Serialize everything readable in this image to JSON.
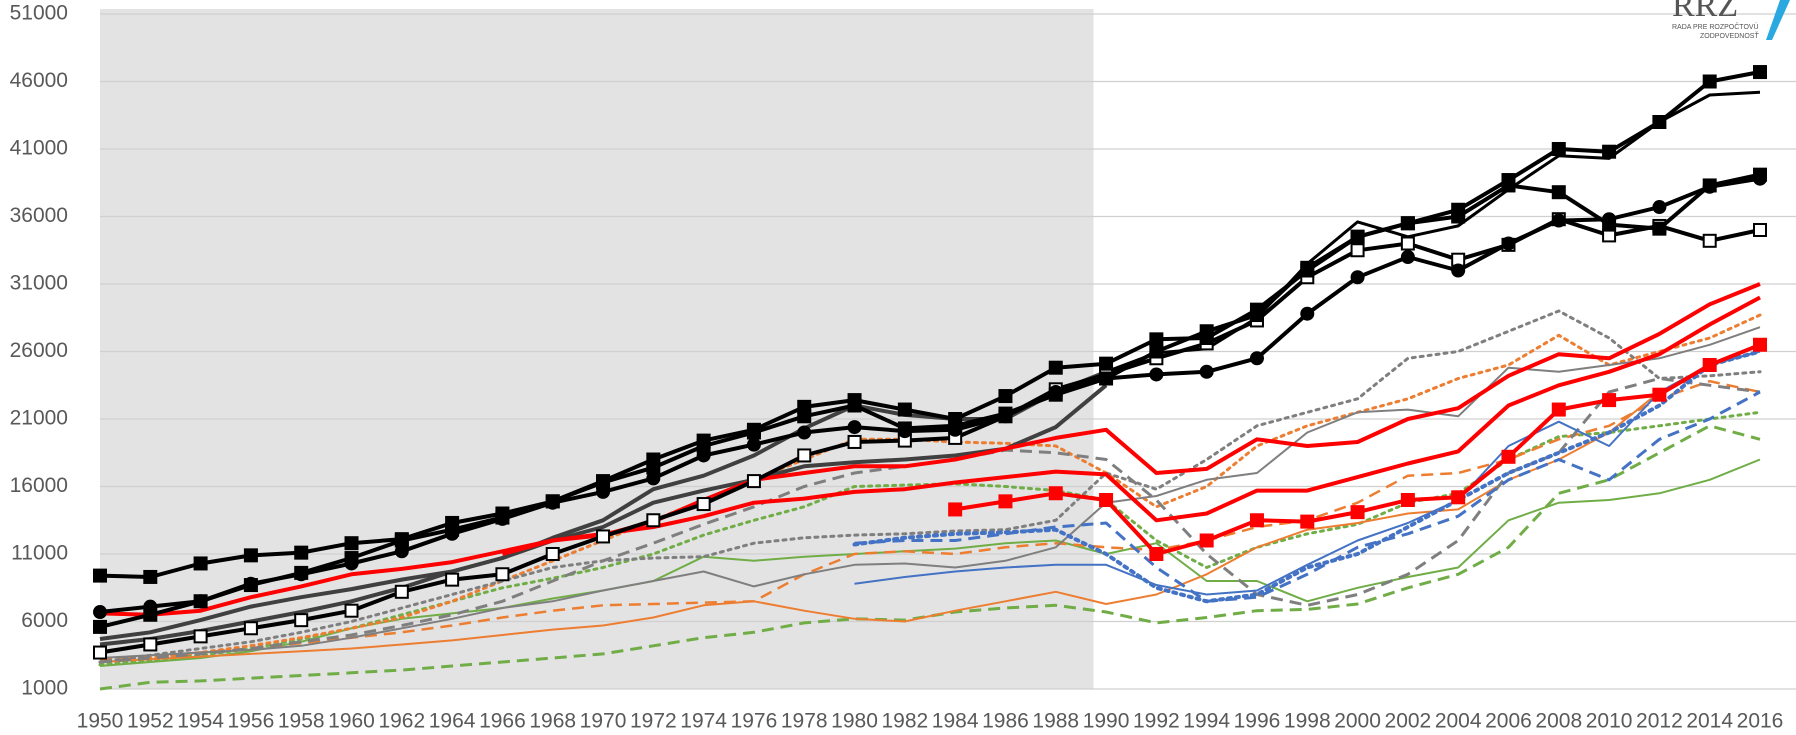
{
  "chart_data": {
    "type": "line",
    "logo": {
      "title": "RRZ",
      "lines": [
        "RADA PRE ROZPOČTOVÚ",
        "ZODPOVEDNOSŤ"
      ]
    },
    "x": [
      1950,
      1952,
      1954,
      1956,
      1958,
      1960,
      1962,
      1964,
      1966,
      1968,
      1970,
      1972,
      1974,
      1976,
      1978,
      1980,
      1982,
      1984,
      1986,
      1988,
      1990,
      1992,
      1994,
      1996,
      1998,
      2000,
      2002,
      2004,
      2006,
      2008,
      2010,
      2012,
      2014,
      2016
    ],
    "xlim": [
      1950,
      2016
    ],
    "xticks": [
      1950,
      1952,
      1954,
      1956,
      1958,
      1960,
      1962,
      1964,
      1966,
      1968,
      1970,
      1972,
      1974,
      1976,
      1978,
      1980,
      1982,
      1984,
      1986,
      1988,
      1990,
      1992,
      1994,
      1996,
      1998,
      2000,
      2002,
      2004,
      2006,
      2008,
      2010,
      2012,
      2014,
      2016
    ],
    "ylim": [
      1000,
      51000
    ],
    "yticks": [
      1000,
      6000,
      11000,
      16000,
      21000,
      26000,
      31000,
      36000,
      41000,
      46000,
      51000
    ],
    "grid": true,
    "shaded_span": [
      1950,
      1989.5
    ],
    "shade_color": "#e3e3e3",
    "series": [
      {
        "color": "#70ad47",
        "dash": "dashed",
        "width": 3,
        "values": [
          1000,
          1500,
          1600,
          1800,
          2000,
          2200,
          2400,
          2700,
          3000,
          3300,
          3600,
          4200,
          4800,
          5200,
          5900,
          6200,
          6100,
          6700,
          7000,
          7200,
          6700,
          5900,
          6300,
          6800,
          6900,
          7300,
          8500,
          9500,
          11500,
          15500,
          16500,
          18500,
          20500,
          19500
        ]
      },
      {
        "color": "#70ad47",
        "dash": "solid",
        "width": 2,
        "values": [
          2700,
          3000,
          3300,
          3800,
          4500,
          5500,
          6200,
          6600,
          7000,
          7700,
          8300,
          9000,
          10800,
          10500,
          10800,
          11000,
          11200,
          11400,
          11800,
          12000,
          11000,
          11800,
          9000,
          9000,
          7500,
          8500,
          9300,
          10000,
          13500,
          14800,
          15000,
          15500,
          16500,
          18000
        ]
      },
      {
        "color": "#70ad47",
        "dash": "dotted",
        "width": 3,
        "values": [
          2800,
          3100,
          3500,
          4000,
          4700,
          5500,
          6500,
          7500,
          8500,
          9200,
          10000,
          11000,
          12400,
          13500,
          14500,
          16000,
          16100,
          16200,
          16000,
          15700,
          15000,
          12000,
          10000,
          11500,
          12500,
          13200,
          14800,
          15500,
          18000,
          19700,
          20000,
          20500,
          21000,
          21500
        ]
      },
      {
        "color": "#ed7d31",
        "dash": "solid",
        "width": 2,
        "values": [
          3000,
          3200,
          3400,
          3600,
          3800,
          4000,
          4300,
          4600,
          5000,
          5400,
          5700,
          6300,
          7200,
          7500,
          6800,
          6200,
          6000,
          6800,
          7500,
          8200,
          7300,
          8000,
          9500,
          11500,
          12800,
          13300,
          14000,
          14300,
          16500,
          18000,
          20000,
          23000,
          25000,
          26000
        ]
      },
      {
        "color": "#ed7d31",
        "dash": "dashed",
        "width": 2.5,
        "values": [
          3200,
          3400,
          3700,
          4000,
          4400,
          4800,
          5200,
          5700,
          6300,
          6800,
          7200,
          7300,
          7400,
          7500,
          9500,
          11000,
          11200,
          11000,
          11500,
          11800,
          11500,
          11300,
          12000,
          13000,
          13500,
          14800,
          16800,
          17000,
          18000,
          19500,
          20500,
          22500,
          23800,
          23000
        ]
      },
      {
        "color": "#ed7d31",
        "dash": "dotted",
        "width": 3,
        "values": [
          3000,
          3300,
          3700,
          4200,
          4800,
          5500,
          6300,
          7500,
          9000,
          10500,
          12000,
          13500,
          15000,
          16500,
          18000,
          19500,
          19500,
          19300,
          19200,
          19000,
          17000,
          14500,
          16000,
          19000,
          20500,
          21500,
          22500,
          24000,
          25000,
          27200,
          25000,
          26000,
          27000,
          28700
        ]
      },
      {
        "color": "#7f7f7f",
        "dash": "solid",
        "width": 2,
        "values": [
          3300,
          3500,
          3700,
          3900,
          4200,
          4800,
          5500,
          6200,
          7000,
          7500,
          8300,
          9000,
          9700,
          8600,
          9500,
          10200,
          10300,
          10000,
          10500,
          11500,
          14800,
          15300,
          16500,
          17000,
          20000,
          21500,
          21700,
          21200,
          24800,
          24500,
          25000,
          25500,
          26500,
          27800
        ]
      },
      {
        "color": "#7f7f7f",
        "dash": "dashed",
        "width": 3,
        "values": [
          3000,
          3300,
          3600,
          4000,
          4500,
          5000,
          5700,
          6500,
          7500,
          9000,
          10500,
          11800,
          13200,
          14500,
          16000,
          17000,
          17500,
          18000,
          18700,
          18500,
          18000,
          15000,
          11000,
          8000,
          7200,
          8000,
          9500,
          12000,
          17000,
          18500,
          23000,
          24000,
          23500,
          23000
        ]
      },
      {
        "color": "#7f7f7f",
        "dash": "dotted",
        "width": 3,
        "values": [
          3000,
          3500,
          4000,
          4500,
          5200,
          6000,
          7000,
          8000,
          9000,
          10000,
          10500,
          10700,
          10800,
          11800,
          12200,
          12400,
          12500,
          12700,
          12800,
          13500,
          17000,
          15800,
          18000,
          20500,
          21500,
          22500,
          25500,
          26000,
          27500,
          29000,
          27000,
          24000,
          24200,
          24500
        ]
      },
      {
        "color": "#4472c4",
        "dash": "solid",
        "width": 2,
        "values": [
          null,
          null,
          null,
          null,
          null,
          null,
          null,
          null,
          null,
          null,
          null,
          null,
          null,
          null,
          null,
          8800,
          9300,
          9700,
          10000,
          10200,
          10200,
          8700,
          8000,
          8300,
          10200,
          12000,
          13300,
          15000,
          19000,
          20800,
          19000,
          23000,
          25000,
          26000
        ]
      },
      {
        "color": "#4472c4",
        "dash": "dashed",
        "width": 3,
        "values": [
          null,
          null,
          null,
          null,
          null,
          null,
          null,
          null,
          null,
          null,
          null,
          null,
          null,
          null,
          null,
          11800,
          12000,
          12000,
          12500,
          13000,
          13300,
          10000,
          7500,
          7800,
          9500,
          11500,
          12500,
          13800,
          16500,
          18000,
          16500,
          19500,
          21000,
          23000
        ]
      },
      {
        "color": "#4472c4",
        "dash": "dotted",
        "width": 4,
        "values": [
          null,
          null,
          null,
          null,
          null,
          null,
          null,
          null,
          null,
          null,
          null,
          null,
          null,
          null,
          null,
          11700,
          12200,
          12500,
          12600,
          12800,
          11000,
          8500,
          7500,
          8000,
          10000,
          11000,
          13000,
          15000,
          17000,
          18500,
          20000,
          22000,
          25000,
          26000
        ]
      },
      {
        "color": "#404040",
        "dash": "solid",
        "width": 4,
        "values": [
          4700,
          5200,
          6100,
          7100,
          7800,
          8400,
          9100,
          9700,
          10700,
          12000,
          13000,
          14800,
          15700,
          16500,
          17500,
          17800,
          18000,
          18300,
          18800,
          20400,
          23500,
          null,
          null,
          null,
          null,
          null,
          null,
          null,
          null,
          null,
          null,
          null,
          null,
          null
        ]
      },
      {
        "color": "#404040",
        "dash": "solid",
        "width": 4,
        "values": [
          4300,
          4700,
          5300,
          6000,
          6700,
          7500,
          8500,
          9700,
          10700,
          12200,
          13500,
          15800,
          16800,
          18300,
          20300,
          22000,
          21300,
          21000,
          21000,
          23000,
          24500,
          null,
          null,
          null,
          null,
          null,
          null,
          null,
          null,
          null,
          null,
          null,
          null,
          null
        ]
      },
      {
        "color": "#ff0000",
        "dash": "solid",
        "width": 4,
        "values": [
          6600,
          6500,
          6800,
          7800,
          8600,
          9500,
          9900,
          10400,
          11200,
          12000,
          12400,
          13400,
          15000,
          16500,
          17000,
          17500,
          17500,
          18000,
          18800,
          19600,
          20200,
          17000,
          17300,
          19500,
          19000,
          19300,
          21000,
          21800,
          24200,
          25800,
          25500,
          27300,
          29500,
          31000
        ]
      },
      {
        "color": "#ff0000",
        "dash": "solid",
        "width": 4,
        "values": [
          null,
          null,
          null,
          null,
          null,
          null,
          null,
          null,
          11000,
          12000,
          12500,
          13000,
          13800,
          14800,
          15100,
          15600,
          15800,
          16300,
          16700,
          17100,
          16900,
          13500,
          14000,
          15700,
          15700,
          16700,
          17700,
          18600,
          22000,
          23500,
          24500,
          25800,
          28000,
          30000
        ]
      },
      {
        "color": "#ff0000",
        "dash": "solid",
        "width": 4,
        "marker": "square",
        "values": [
          null,
          null,
          null,
          null,
          null,
          null,
          null,
          null,
          null,
          null,
          null,
          null,
          null,
          null,
          null,
          null,
          null,
          14300,
          14900,
          15500,
          15000,
          11000,
          12000,
          13500,
          13400,
          14100,
          15000,
          15200,
          18200,
          21700,
          22400,
          22800,
          25000,
          26500
        ]
      },
      {
        "color": "#000000",
        "dash": "solid",
        "width": 3,
        "values": [
          null,
          null,
          null,
          null,
          null,
          null,
          null,
          null,
          null,
          null,
          null,
          null,
          null,
          null,
          null,
          null,
          null,
          null,
          null,
          null,
          24500,
          25900,
          26200,
          28500,
          32500,
          35600,
          34500,
          35300,
          38000,
          40500,
          40300,
          43000,
          45000,
          45200
        ]
      },
      {
        "color": "#000000",
        "dash": "solid",
        "width": 4,
        "marker": "open-square",
        "values": [
          3700,
          4300,
          4900,
          5500,
          6100,
          6800,
          8200,
          9100,
          9500,
          11000,
          12300,
          13500,
          14700,
          16400,
          18300,
          19300,
          19400,
          19600,
          21200,
          23200,
          24300,
          25500,
          26600,
          28300,
          31500,
          33500,
          34000,
          32800,
          33900,
          35800,
          34600,
          35300,
          34200,
          35000
        ]
      },
      {
        "color": "#000000",
        "dash": "solid",
        "width": 4,
        "marker": "circle",
        "values": [
          6700,
          7100,
          7500,
          8800,
          9500,
          10300,
          11200,
          12500,
          13600,
          14800,
          15600,
          16600,
          18300,
          19100,
          20000,
          20400,
          20100,
          20200,
          21200,
          23000,
          24000,
          24300,
          24500,
          25500,
          28800,
          31500,
          33000,
          32000,
          34000,
          35700,
          35800,
          36700,
          38200,
          38800
        ]
      },
      {
        "color": "#000000",
        "dash": "solid",
        "width": 4,
        "marker": "square",
        "values": [
          5600,
          6500,
          7500,
          8700,
          9600,
          10700,
          12000,
          12800,
          13700,
          14900,
          16300,
          17400,
          19000,
          20000,
          21200,
          22000,
          20300,
          20500,
          21400,
          22800,
          24000,
          26000,
          27500,
          28700,
          32200,
          34500,
          35500,
          36000,
          38300,
          37800,
          35400,
          35100,
          38300,
          39100
        ]
      },
      {
        "color": "#000000",
        "dash": "solid",
        "width": 4,
        "marker": "square",
        "values": [
          9400,
          9300,
          10300,
          10900,
          11100,
          11800,
          12100,
          13300,
          14000,
          14900,
          16400,
          18000,
          19400,
          20200,
          21900,
          22400,
          21700,
          21000,
          22700,
          24800,
          25100,
          26900,
          27000,
          29100,
          32000,
          34500,
          35500,
          36500,
          38700,
          41000,
          40800,
          43000,
          46000,
          46700
        ]
      }
    ]
  }
}
